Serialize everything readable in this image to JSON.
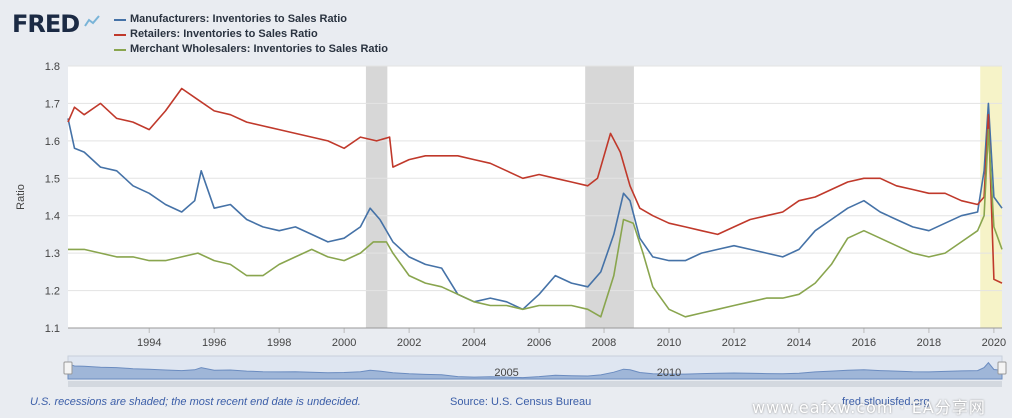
{
  "logo": {
    "text": "FRED",
    "icon": "fred-chart-icon"
  },
  "footer": {
    "recession_note": "U.S. recessions are shaded; the most recent end date is undecided.",
    "source": "Source: U.S. Census Bureau",
    "fred_link": "fred.stlouisfed.org"
  },
  "watermark": "www.eafxw.com · EA分享网",
  "colors": {
    "manufacturers": "#4572a7",
    "retailers": "#c0392b",
    "wholesalers": "#89a54e",
    "recession": "#d7d7d7",
    "latest_recession": "#f6f3c8"
  },
  "chart_data": {
    "type": "line",
    "ylabel": "Ratio",
    "ylim": [
      1.1,
      1.8
    ],
    "yticks": [
      "1.1",
      "1.2",
      "1.3",
      "1.4",
      "1.5",
      "1.6",
      "1.7",
      "1.8"
    ],
    "xlim": [
      1992.0,
      2020.75
    ],
    "xticks": [
      "1994",
      "1996",
      "1998",
      "2000",
      "2002",
      "2004",
      "2006",
      "2008",
      "2010",
      "2012",
      "2014",
      "2016",
      "2018",
      "2020"
    ],
    "recessions": [
      [
        2001.17,
        2001.83
      ],
      [
        2007.92,
        2009.42
      ],
      [
        2020.08,
        2020.75
      ]
    ],
    "navigator_label_2005": "2005",
    "navigator_label_2010": "2010",
    "series": [
      {
        "name": "Manufacturers: Inventories to Sales Ratio",
        "x": [
          1992.0,
          1992.2,
          1992.5,
          1993.0,
          1993.5,
          1994.0,
          1994.5,
          1995.0,
          1995.5,
          1995.9,
          1996.1,
          1996.5,
          1997.0,
          1997.5,
          1998.0,
          1998.5,
          1999.0,
          1999.5,
          2000.0,
          2000.5,
          2001.0,
          2001.3,
          2001.6,
          2002.0,
          2002.5,
          2003.0,
          2003.5,
          2004.0,
          2004.5,
          2005.0,
          2005.5,
          2006.0,
          2006.5,
          2007.0,
          2007.5,
          2008.0,
          2008.4,
          2008.8,
          2009.1,
          2009.3,
          2009.6,
          2010.0,
          2010.5,
          2011.0,
          2011.5,
          2012.0,
          2012.5,
          2013.0,
          2013.5,
          2014.0,
          2014.5,
          2015.0,
          2015.5,
          2016.0,
          2016.5,
          2017.0,
          2017.5,
          2018.0,
          2018.5,
          2019.0,
          2019.5,
          2020.0,
          2020.2,
          2020.33,
          2020.5,
          2020.75
        ],
        "y": [
          1.66,
          1.58,
          1.57,
          1.53,
          1.52,
          1.48,
          1.46,
          1.43,
          1.41,
          1.44,
          1.52,
          1.42,
          1.43,
          1.39,
          1.37,
          1.36,
          1.37,
          1.35,
          1.33,
          1.34,
          1.37,
          1.42,
          1.39,
          1.33,
          1.29,
          1.27,
          1.26,
          1.19,
          1.17,
          1.18,
          1.17,
          1.15,
          1.19,
          1.24,
          1.22,
          1.21,
          1.25,
          1.35,
          1.46,
          1.44,
          1.34,
          1.29,
          1.28,
          1.28,
          1.3,
          1.31,
          1.32,
          1.31,
          1.3,
          1.29,
          1.31,
          1.36,
          1.39,
          1.42,
          1.44,
          1.41,
          1.39,
          1.37,
          1.36,
          1.38,
          1.4,
          1.41,
          1.52,
          1.7,
          1.45,
          1.42
        ]
      },
      {
        "name": "Retailers: Inventories to Sales Ratio",
        "x": [
          1992.0,
          1992.2,
          1992.5,
          1993.0,
          1993.5,
          1994.0,
          1994.5,
          1995.0,
          1995.5,
          1996.0,
          1996.5,
          1997.0,
          1997.5,
          1998.0,
          1998.5,
          1999.0,
          1999.5,
          2000.0,
          2000.5,
          2001.0,
          2001.5,
          2001.9,
          2002.0,
          2002.5,
          2003.0,
          2003.5,
          2004.0,
          2004.5,
          2005.0,
          2005.5,
          2006.0,
          2006.5,
          2007.0,
          2007.5,
          2008.0,
          2008.3,
          2008.7,
          2009.0,
          2009.3,
          2009.6,
          2010.0,
          2010.5,
          2011.0,
          2011.5,
          2012.0,
          2012.5,
          2013.0,
          2013.5,
          2014.0,
          2014.5,
          2015.0,
          2015.5,
          2016.0,
          2016.5,
          2017.0,
          2017.5,
          2018.0,
          2018.5,
          2019.0,
          2019.5,
          2020.0,
          2020.2,
          2020.33,
          2020.5,
          2020.75
        ],
        "y": [
          1.65,
          1.69,
          1.67,
          1.7,
          1.66,
          1.65,
          1.63,
          1.68,
          1.74,
          1.71,
          1.68,
          1.67,
          1.65,
          1.64,
          1.63,
          1.62,
          1.61,
          1.6,
          1.58,
          1.61,
          1.6,
          1.61,
          1.53,
          1.55,
          1.56,
          1.56,
          1.56,
          1.55,
          1.54,
          1.52,
          1.5,
          1.51,
          1.5,
          1.49,
          1.48,
          1.5,
          1.62,
          1.57,
          1.48,
          1.42,
          1.4,
          1.38,
          1.37,
          1.36,
          1.35,
          1.37,
          1.39,
          1.4,
          1.41,
          1.44,
          1.45,
          1.47,
          1.49,
          1.5,
          1.5,
          1.48,
          1.47,
          1.46,
          1.46,
          1.44,
          1.43,
          1.45,
          1.67,
          1.23,
          1.22
        ]
      },
      {
        "name": "Merchant Wholesalers: Inventories to Sales Ratio",
        "x": [
          1992.0,
          1992.5,
          1993.0,
          1993.5,
          1994.0,
          1994.5,
          1995.0,
          1995.5,
          1996.0,
          1996.5,
          1997.0,
          1997.5,
          1998.0,
          1998.5,
          1999.0,
          1999.5,
          2000.0,
          2000.5,
          2001.0,
          2001.4,
          2001.8,
          2002.0,
          2002.5,
          2003.0,
          2003.5,
          2004.0,
          2004.5,
          2005.0,
          2005.5,
          2006.0,
          2006.5,
          2007.0,
          2007.5,
          2008.0,
          2008.4,
          2008.8,
          2009.1,
          2009.4,
          2009.7,
          2010.0,
          2010.5,
          2011.0,
          2011.5,
          2012.0,
          2012.5,
          2013.0,
          2013.5,
          2014.0,
          2014.5,
          2015.0,
          2015.5,
          2016.0,
          2016.5,
          2017.0,
          2017.5,
          2018.0,
          2018.5,
          2019.0,
          2019.5,
          2020.0,
          2020.2,
          2020.33,
          2020.5,
          2020.75
        ],
        "y": [
          1.31,
          1.31,
          1.3,
          1.29,
          1.29,
          1.28,
          1.28,
          1.29,
          1.3,
          1.28,
          1.27,
          1.24,
          1.24,
          1.27,
          1.29,
          1.31,
          1.29,
          1.28,
          1.3,
          1.33,
          1.33,
          1.3,
          1.24,
          1.22,
          1.21,
          1.19,
          1.17,
          1.16,
          1.16,
          1.15,
          1.16,
          1.16,
          1.16,
          1.15,
          1.13,
          1.24,
          1.39,
          1.38,
          1.3,
          1.21,
          1.15,
          1.13,
          1.14,
          1.15,
          1.16,
          1.17,
          1.18,
          1.18,
          1.19,
          1.22,
          1.27,
          1.34,
          1.36,
          1.34,
          1.32,
          1.3,
          1.29,
          1.3,
          1.33,
          1.36,
          1.4,
          1.63,
          1.37,
          1.31
        ]
      }
    ]
  }
}
